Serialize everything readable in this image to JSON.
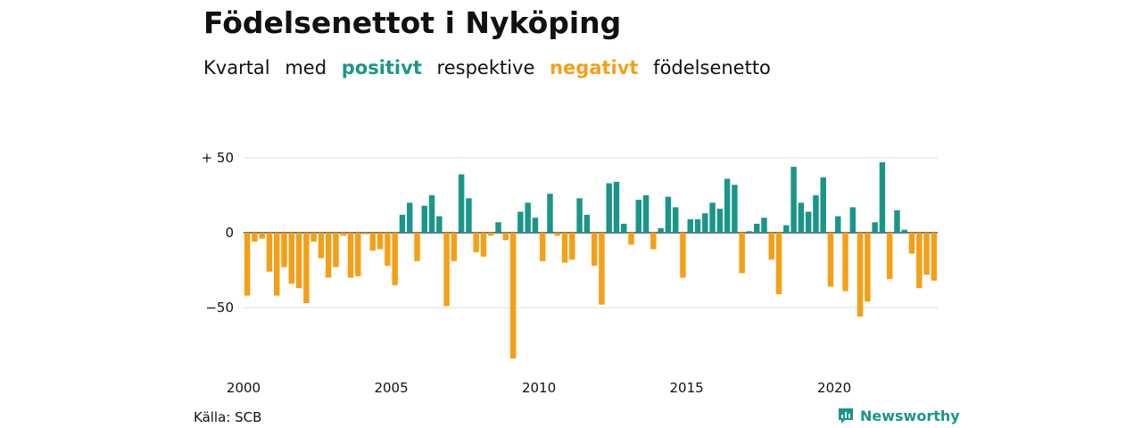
{
  "title": "Födelsenettot i Nyköping",
  "subtitle": {
    "w1": "Kvartal",
    "w2": "med",
    "positive_word": "positivt",
    "w3": "respektive",
    "negative_word": "negativt",
    "w4": "födelsenetto"
  },
  "source": "Källa: SCB",
  "brand": {
    "name": "Newsworthy",
    "icon": "newsworthy-logo-icon"
  },
  "colors": {
    "positive": "#1a9688",
    "negative": "#f59f18",
    "grid": "#dddddd",
    "zero": "#222222"
  },
  "chart_data": {
    "type": "bar",
    "title": "Födelsenettot i Nyköping",
    "xlabel": "",
    "ylabel": "",
    "ylim": [
      -85,
      60
    ],
    "grid": true,
    "y_ticks": [
      {
        "value": 50,
        "label": "+ 50"
      },
      {
        "value": 0,
        "label": "0"
      },
      {
        "value": -50,
        "label": "−50"
      }
    ],
    "x_ticks": [
      {
        "year": 2000,
        "label": "2000"
      },
      {
        "year": 2005,
        "label": "2005"
      },
      {
        "year": 2010,
        "label": "2010"
      },
      {
        "year": 2015,
        "label": "2015"
      },
      {
        "year": 2020,
        "label": "2020"
      }
    ],
    "start_year": 2000,
    "frequency": "quarterly",
    "values": [
      -42,
      -6,
      -4,
      -26,
      -42,
      -23,
      -34,
      -37,
      -47,
      -6,
      -17,
      -30,
      -23,
      -2,
      -30,
      -29,
      -1,
      -12,
      -11,
      -22,
      -35,
      12,
      20,
      -19,
      18,
      25,
      11,
      -49,
      -19,
      39,
      23,
      -13,
      -16,
      -2,
      7,
      -5,
      -84,
      14,
      20,
      10,
      -19,
      26,
      -2,
      -20,
      -18,
      23,
      12,
      -22,
      -48,
      33,
      34,
      6,
      -8,
      22,
      25,
      -11,
      3,
      24,
      17,
      -30,
      9,
      9,
      13,
      20,
      16,
      36,
      32,
      -27,
      1,
      6,
      10,
      -18,
      -41,
      5,
      44,
      20,
      14,
      25,
      37,
      -36,
      11,
      -39,
      17,
      -56,
      -46,
      7,
      47,
      -31,
      15,
      2,
      -14,
      -37,
      -28,
      -32
    ]
  }
}
